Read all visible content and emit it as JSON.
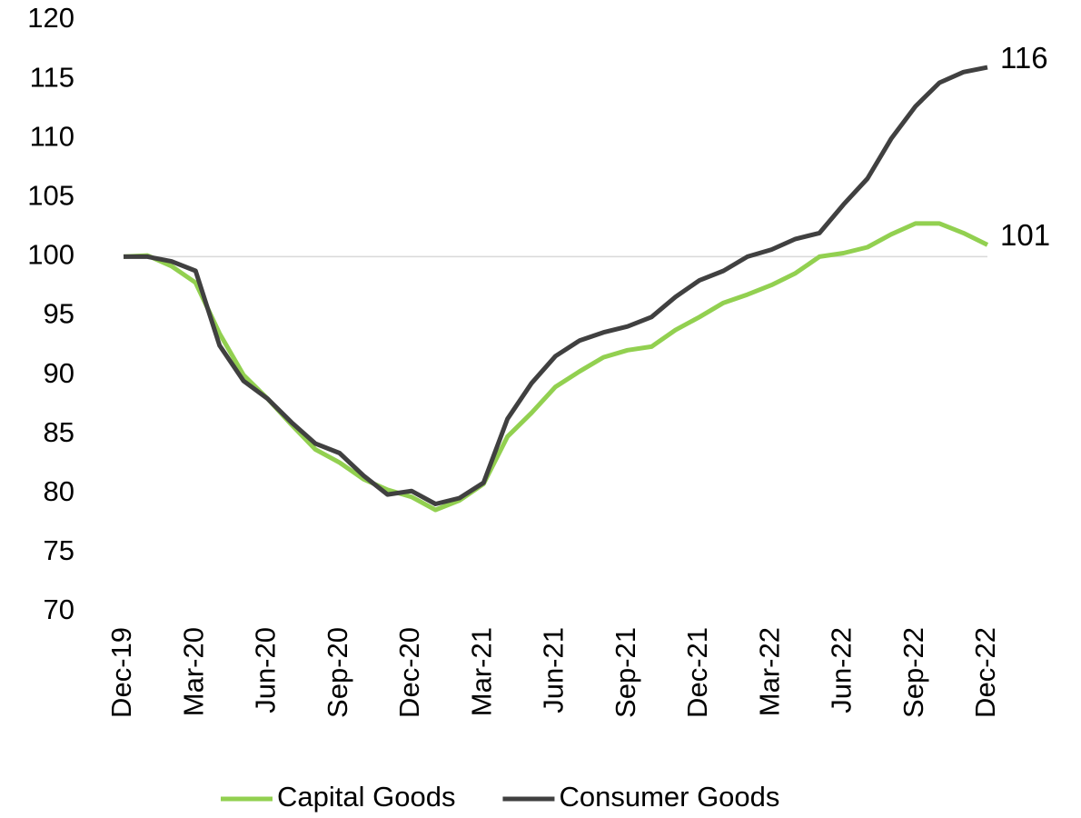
{
  "chart_data": {
    "type": "line",
    "categories": [
      "Dec-19",
      null,
      null,
      "Mar-20",
      null,
      null,
      "Jun-20",
      null,
      null,
      "Sep-20",
      null,
      null,
      "Dec-20",
      null,
      null,
      "Mar-21",
      null,
      null,
      "Jun-21",
      null,
      null,
      "Sep-21",
      null,
      null,
      "Dec-21",
      null,
      null,
      "Mar-22",
      null,
      null,
      "Jun-22",
      null,
      null,
      "Sep-22",
      null,
      null,
      "Dec-22"
    ],
    "series": [
      {
        "name": "Capital Goods",
        "color": "#92d050",
        "values": [
          100,
          100.1,
          99.2,
          97.8,
          93.5,
          90,
          88,
          85.8,
          83.7,
          82.6,
          81.2,
          80.3,
          79.7,
          78.6,
          79.4,
          80.8,
          84.8,
          86.8,
          89,
          90.3,
          91.5,
          92.1,
          92.4,
          93.8,
          94.9,
          96.1,
          96.8,
          97.6,
          98.6,
          100,
          100.3,
          100.8,
          101.9,
          102.8,
          102.8,
          102,
          101
        ]
      },
      {
        "name": "Consumer Goods",
        "color": "#404040",
        "values": [
          100,
          100,
          99.6,
          98.8,
          92.5,
          89.5,
          88,
          86,
          84.2,
          83.4,
          81.5,
          79.9,
          80.2,
          79.1,
          79.6,
          80.9,
          86.3,
          89.3,
          91.6,
          92.9,
          93.6,
          94.1,
          94.9,
          96.6,
          98,
          98.8,
          100,
          100.6,
          101.5,
          102,
          104.4,
          106.6,
          110,
          112.7,
          114.7,
          115.6,
          116
        ]
      }
    ],
    "ylim": [
      70,
      120
    ],
    "yticks": [
      70,
      75,
      80,
      85,
      90,
      95,
      100,
      105,
      110,
      115,
      120
    ],
    "reference_line": 100,
    "grid": false,
    "legend": "bottom"
  }
}
